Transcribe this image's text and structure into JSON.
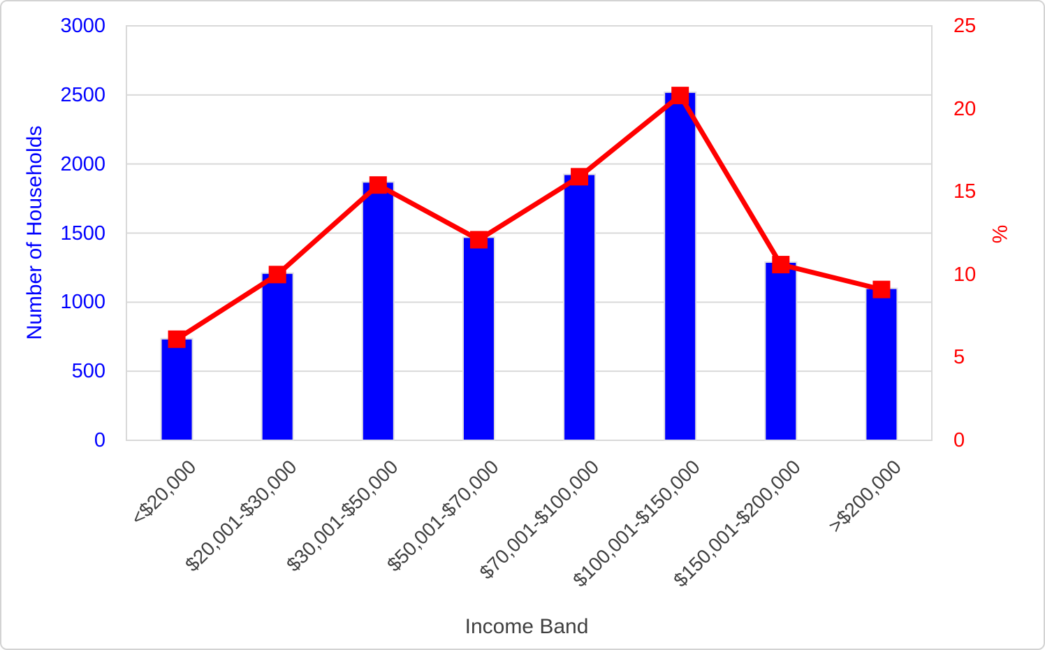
{
  "chart_data": {
    "type": "bar+line",
    "categories": [
      "<$20,000",
      "$20,001-$30,000",
      "$30,001-$50,000",
      "$50,001-$70,000",
      "$70,001-$100,000",
      "$100,001-$150,000",
      "$150,001-$200,000",
      ">$200,000"
    ],
    "series": [
      {
        "name": "Number of Households",
        "type": "bar",
        "axis": "left",
        "color": "#0000ff",
        "values": [
          735,
          1210,
          1870,
          1470,
          1925,
          2520,
          1290,
          1100
        ]
      },
      {
        "name": "%",
        "type": "line",
        "axis": "right",
        "color": "#ff0000",
        "marker": "square",
        "values": [
          6.1,
          10.0,
          15.4,
          12.1,
          15.9,
          20.8,
          10.6,
          9.1
        ]
      }
    ],
    "xlabel": "Income Band",
    "ylabel_left": "Number of Households",
    "ylabel_right": "%",
    "ylim_left": [
      0,
      3000
    ],
    "ytick_step_left": 500,
    "ylim_right": [
      0,
      25
    ],
    "ytick_step_right": 5,
    "grid": "horizontal",
    "legend": "none",
    "colors": {
      "left_axis_text": "#0000ff",
      "right_axis_text": "#ff0000",
      "category_text": "#404040",
      "x_title_text": "#404040",
      "gridline": "#d9d9d9",
      "plot_border": "#d9d9d9",
      "bar_outline": "#e0e0e0",
      "canvas_border": "#d3d3d3"
    }
  }
}
